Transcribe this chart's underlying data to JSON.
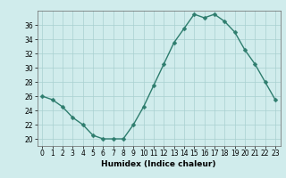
{
  "x": [
    0,
    1,
    2,
    3,
    4,
    5,
    6,
    7,
    8,
    9,
    10,
    11,
    12,
    13,
    14,
    15,
    16,
    17,
    18,
    19,
    20,
    21,
    22,
    23
  ],
  "y": [
    26,
    25.5,
    24.5,
    23,
    22,
    20.5,
    20,
    20,
    20,
    22,
    24.5,
    27.5,
    30.5,
    33.5,
    35.5,
    37.5,
    37,
    37.5,
    36.5,
    35,
    32.5,
    30.5,
    28,
    25.5
  ],
  "line_color": "#2e7d6e",
  "marker_color": "#2e7d6e",
  "bg_color": "#d0ecec",
  "grid_color": "#a8d0d0",
  "xlabel": "Humidex (Indice chaleur)",
  "ylim": [
    19,
    38
  ],
  "xlim": [
    -0.5,
    23.5
  ],
  "yticks": [
    20,
    22,
    24,
    26,
    28,
    30,
    32,
    34,
    36
  ],
  "xticks": [
    0,
    1,
    2,
    3,
    4,
    5,
    6,
    7,
    8,
    9,
    10,
    11,
    12,
    13,
    14,
    15,
    16,
    17,
    18,
    19,
    20,
    21,
    22,
    23
  ],
  "label_fontsize": 6.5,
  "tick_fontsize": 5.5,
  "linewidth": 1.0,
  "markersize": 2.5
}
